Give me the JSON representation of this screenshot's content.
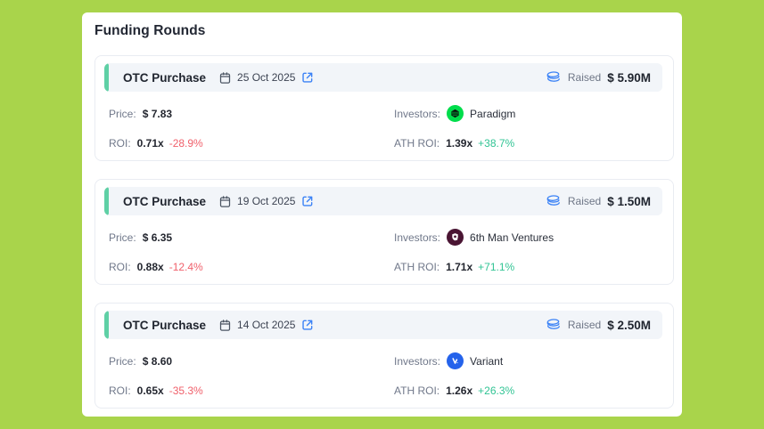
{
  "page_title": "Funding Rounds",
  "colors": {
    "background": "#a9d44b",
    "accent_bar": "#5fd0a5",
    "positive": "#31c494",
    "negative": "#f0606b",
    "icon_blue": "#3b82f6"
  },
  "labels": {
    "price": "Price:",
    "investors": "Investors:",
    "roi": "ROI:",
    "ath_roi": "ATH ROI:",
    "raised": "Raised"
  },
  "rounds": [
    {
      "type": "OTC Purchase",
      "date": "25 Oct 2025",
      "raised": "$ 5.90M",
      "price": "$ 7.83",
      "investor": {
        "name": "Paradigm",
        "logo_color": "#00dd4b",
        "glyph": "paradigm-cube"
      },
      "roi": {
        "multiple": "0.71x",
        "change": "-28.9%"
      },
      "ath_roi": {
        "multiple": "1.39x",
        "change": "+38.7%"
      }
    },
    {
      "type": "OTC Purchase",
      "date": "19 Oct 2025",
      "raised": "$ 1.50M",
      "price": "$ 6.35",
      "investor": {
        "name": "6th Man Ventures",
        "logo_color": "#4a1533",
        "glyph": "shield"
      },
      "roi": {
        "multiple": "0.88x",
        "change": "-12.4%"
      },
      "ath_roi": {
        "multiple": "1.71x",
        "change": "+71.1%"
      }
    },
    {
      "type": "OTC Purchase",
      "date": "14 Oct 2025",
      "raised": "$ 2.50M",
      "price": "$ 8.60",
      "investor": {
        "name": "Variant",
        "logo_color": "#2563eb",
        "glyph": "v-mark"
      },
      "roi": {
        "multiple": "0.65x",
        "change": "-35.3%"
      },
      "ath_roi": {
        "multiple": "1.26x",
        "change": "+26.3%"
      }
    }
  ]
}
